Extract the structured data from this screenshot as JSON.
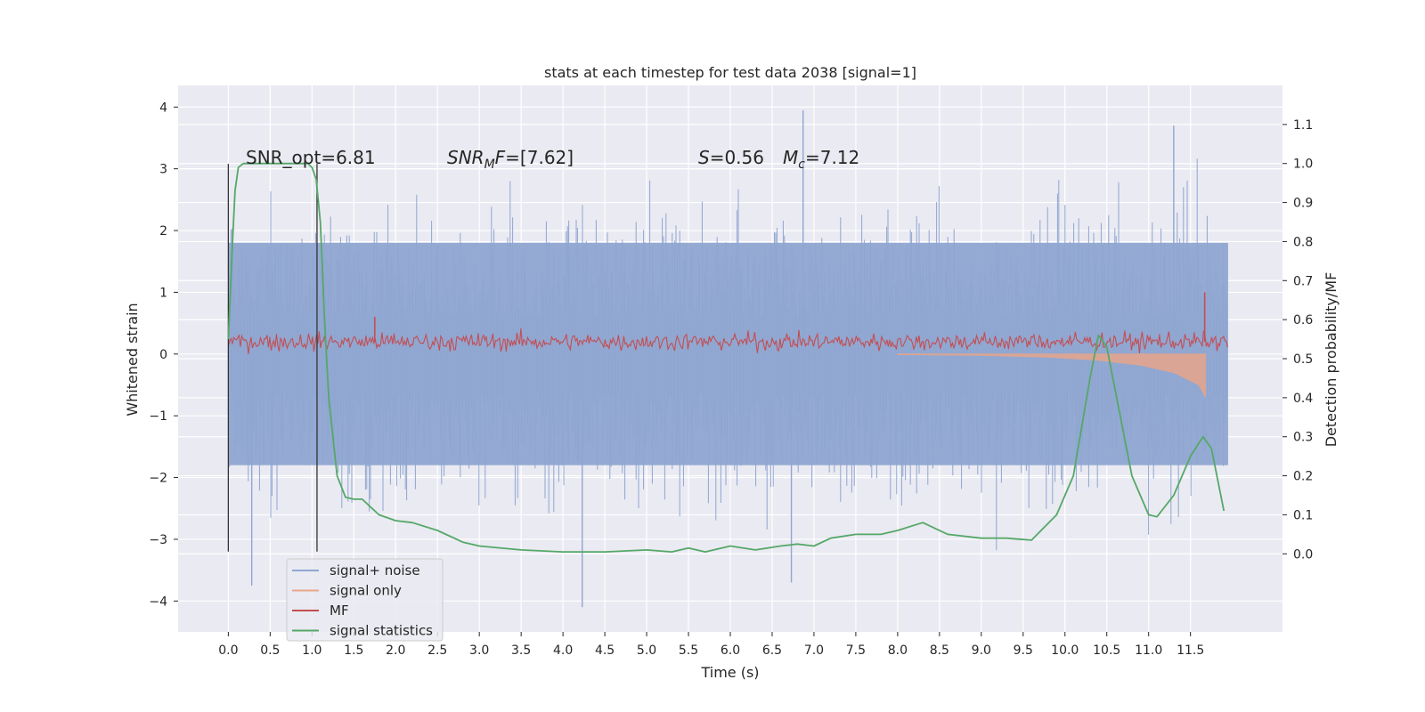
{
  "chart_data": {
    "type": "line",
    "title": "stats at each timestep for test data 2038 [signal=1]",
    "xlabel": "Time (s)",
    "ylabel": "Whitened strain",
    "y2label": "Detection probability/MF",
    "xlim": [
      -0.6,
      12.6
    ],
    "ylim": [
      -4.5,
      4.35
    ],
    "y2lim": [
      -0.2,
      1.2
    ],
    "grid": true,
    "x_ticks": [
      "0.0",
      "0.5",
      "1.0",
      "1.5",
      "2.0",
      "2.5",
      "3.0",
      "3.5",
      "4.0",
      "4.5",
      "5.0",
      "5.5",
      "6.0",
      "6.5",
      "7.0",
      "7.5",
      "8.0",
      "8.5",
      "9.0",
      "9.5",
      "10.0",
      "10.5",
      "11.0",
      "11.5"
    ],
    "y_ticks": [
      "4",
      "3",
      "2",
      "1",
      "0",
      "−1",
      "−2",
      "−3",
      "−4"
    ],
    "y2_ticks": [
      "1.1",
      "1.0",
      "0.9",
      "0.8",
      "0.7",
      "0.6",
      "0.5",
      "0.4",
      "0.3",
      "0.2",
      "0.1",
      "0.0"
    ],
    "annotations": {
      "snr_opt": "SNR_opt=6.81",
      "snr_mf_a": "SNR",
      "snr_mf_sub": "M",
      "snr_mf_b": "F",
      "snr_mf_c": "=[7.62]",
      "s_var": "S",
      "s_val": "=0.56",
      "mc_var": "M",
      "mc_sub": "c",
      "mc_val": "=7.12"
    },
    "vlines": [
      0.0,
      1.06
    ],
    "legend": {
      "placement": "lower-left",
      "entries": [
        {
          "label": "signal+ noise",
          "color": "#8fa6d1"
        },
        {
          "label": "signal only",
          "color": "#e8a58a"
        },
        {
          "label": "MF",
          "color": "#c44e52"
        },
        {
          "label": "signal statistics",
          "color": "#55a868"
        }
      ]
    },
    "series": [
      {
        "name": "signal+ noise",
        "axis": "left",
        "color": "#8fa6d1",
        "representation": "dense noise band",
        "x_range": [
          0.0,
          11.95
        ],
        "band_core": [
          -1.8,
          1.8
        ],
        "typical_extremes": [
          -3.3,
          3.3
        ],
        "peaks": [
          {
            "x": 6.87,
            "y": 3.95
          },
          {
            "x": 11.3,
            "y": 3.7
          },
          {
            "x": 4.23,
            "y": -4.1
          },
          {
            "x": 6.73,
            "y": -3.7
          },
          {
            "x": 0.28,
            "y": -3.75
          }
        ]
      },
      {
        "name": "signal only",
        "axis": "left",
        "color": "#e8a58a",
        "representation": "chirp envelope",
        "points": [
          {
            "x": 8.0,
            "y": -0.01
          },
          {
            "x": 9.0,
            "y": -0.02
          },
          {
            "x": 9.8,
            "y": -0.05
          },
          {
            "x": 10.4,
            "y": -0.1
          },
          {
            "x": 10.9,
            "y": -0.18
          },
          {
            "x": 11.3,
            "y": -0.3
          },
          {
            "x": 11.6,
            "y": -0.5
          },
          {
            "x": 11.68,
            "y": -0.7
          }
        ]
      },
      {
        "name": "MF",
        "axis": "left",
        "color": "#c44e52",
        "representation": "noisy trace",
        "x_range": [
          0.0,
          11.95
        ],
        "baseline": 0.2,
        "range": [
          0.0,
          0.5
        ],
        "peaks": [
          {
            "x": 1.75,
            "y": 0.6
          },
          {
            "x": 11.67,
            "y": 1.0
          }
        ]
      },
      {
        "name": "signal statistics",
        "axis": "right",
        "color": "#55a868",
        "x": [
          0.0,
          0.05,
          0.08,
          0.12,
          0.18,
          0.3,
          0.5,
          0.8,
          0.95,
          1.0,
          1.05,
          1.1,
          1.15,
          1.2,
          1.3,
          1.4,
          1.5,
          1.6,
          1.7,
          1.8,
          2.0,
          2.2,
          2.5,
          2.8,
          3.0,
          3.5,
          4.0,
          4.5,
          5.0,
          5.3,
          5.5,
          5.7,
          6.0,
          6.3,
          6.6,
          6.8,
          7.0,
          7.2,
          7.5,
          7.8,
          8.0,
          8.3,
          8.6,
          9.0,
          9.3,
          9.6,
          9.9,
          10.1,
          10.3,
          10.4,
          10.5,
          10.6,
          10.8,
          11.0,
          11.1,
          11.3,
          11.5,
          11.65,
          11.75,
          11.9
        ],
        "y": [
          0.55,
          0.8,
          0.93,
          0.99,
          1.0,
          1.0,
          1.0,
          1.0,
          1.0,
          0.99,
          0.96,
          0.85,
          0.6,
          0.4,
          0.2,
          0.145,
          0.14,
          0.14,
          0.12,
          0.1,
          0.085,
          0.08,
          0.06,
          0.03,
          0.02,
          0.01,
          0.005,
          0.005,
          0.01,
          0.005,
          0.015,
          0.005,
          0.02,
          0.01,
          0.02,
          0.025,
          0.02,
          0.04,
          0.05,
          0.05,
          0.06,
          0.08,
          0.05,
          0.04,
          0.04,
          0.035,
          0.1,
          0.2,
          0.45,
          0.56,
          0.53,
          0.42,
          0.2,
          0.1,
          0.095,
          0.15,
          0.25,
          0.3,
          0.27,
          0.11
        ]
      }
    ]
  }
}
